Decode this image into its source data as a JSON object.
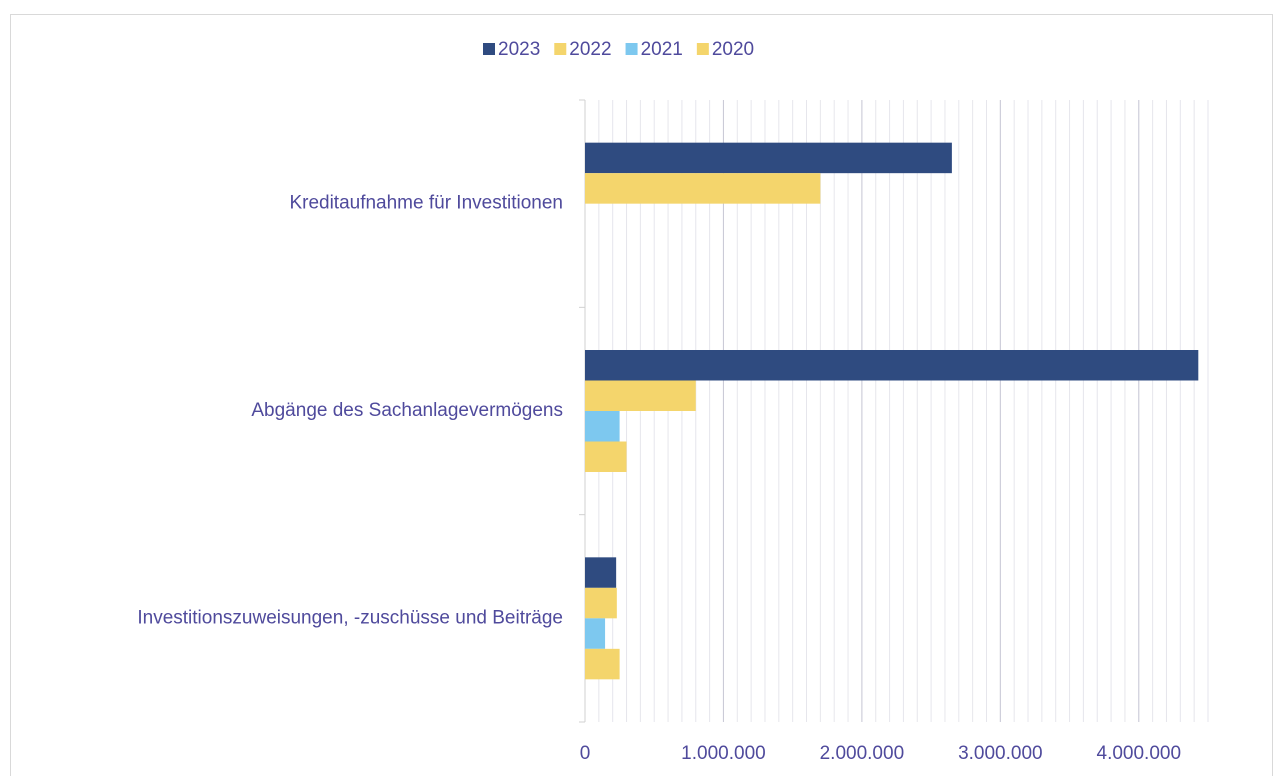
{
  "chart_data": {
    "type": "hbar",
    "categories": [
      "Kreditaufnahme für Investitionen",
      "Abgänge des Sachanlagevermögens",
      "Investitionszuweisungen, -zuschüsse und Beiträge"
    ],
    "series": [
      {
        "name": "2023",
        "color": "#2f4b80",
        "values": [
          2650000,
          4430000,
          225000
        ]
      },
      {
        "name": "2022",
        "color": "#f4d56c",
        "values": [
          1700000,
          800000,
          230000
        ]
      },
      {
        "name": "2021",
        "color": "#7dc8ef",
        "values": [
          0,
          250000,
          145000
        ]
      },
      {
        "name": "2020",
        "color": "#f4d56c",
        "values": [
          0,
          300000,
          250000
        ]
      }
    ],
    "xlim": [
      0,
      4500000
    ],
    "xticks": [
      0,
      {
        "value": 1000000,
        "label": "1.000.000"
      },
      {
        "value": 2000000,
        "label": "2.000.000"
      },
      {
        "value": 3000000,
        "label": "3.000.000"
      },
      {
        "value": 4000000,
        "label": "4.000.000"
      }
    ],
    "minor_grid_step": 100000,
    "grid": true,
    "legend": "top"
  }
}
